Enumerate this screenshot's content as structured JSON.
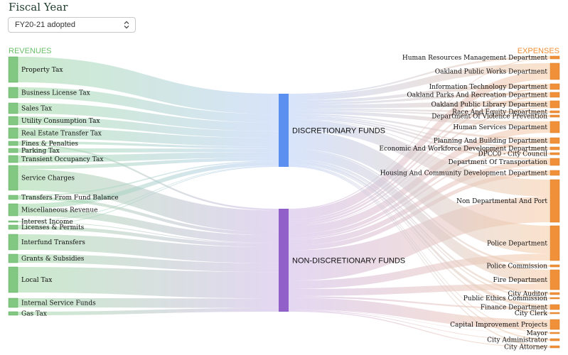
{
  "filter": {
    "title": "Fiscal Year",
    "selected": "FY20-21 adopted"
  },
  "headers": {
    "revenues": "REVENUES",
    "expenses": "EXPENSES"
  },
  "colors": {
    "revenue_node": "#82c882",
    "revenue_header": "#6abf6a",
    "discretionary": "#5b8ff0",
    "non_discretionary": "#9160c8",
    "expense_node": "#f0913a",
    "expense_header": "#f0913a"
  },
  "funds": [
    {
      "id": "disc",
      "label": "DISCRETIONARY FUNDS"
    },
    {
      "id": "nondisc",
      "label": "NON-DISCRETIONARY FUNDS"
    }
  ],
  "revenues": [
    {
      "label": "Property Tax"
    },
    {
      "label": "Business License Tax"
    },
    {
      "label": "Sales Tax"
    },
    {
      "label": "Utility Consumption Tax"
    },
    {
      "label": "Real Estate Transfer Tax"
    },
    {
      "label": "Fines & Penalties"
    },
    {
      "label": "Parking Tax"
    },
    {
      "label": "Transient Occupancy Tax"
    },
    {
      "label": "Service Charges"
    },
    {
      "label": "Transfers From Fund Balance"
    },
    {
      "label": "Miscellaneous Revenue"
    },
    {
      "label": "Interest Income"
    },
    {
      "label": "Licenses & Permits"
    },
    {
      "label": "Interfund Transfers"
    },
    {
      "label": "Grants & Subsidies"
    },
    {
      "label": "Local Tax"
    },
    {
      "label": "Internal Service Funds"
    },
    {
      "label": "Gas Tax"
    }
  ],
  "expenses": [
    {
      "label": "Human Resources Management Department"
    },
    {
      "label": "Oakland Public Works Department"
    },
    {
      "label": "Information Technology Department"
    },
    {
      "label": "Oakland Parks And Recreation Department"
    },
    {
      "label": "Oakland Public Library Department"
    },
    {
      "label": "Race And Equity Department"
    },
    {
      "label": "Department Of Violence Prevention"
    },
    {
      "label": "Human Services Department"
    },
    {
      "label": "Planning And Building Department"
    },
    {
      "label": "Economic And Workforce Development Department"
    },
    {
      "label": "DPCC0 - City Council"
    },
    {
      "label": "Department Of Transportation"
    },
    {
      "label": "Housing And Community Development Department"
    },
    {
      "label": "Non Departmental And Port"
    },
    {
      "label": "Police Department"
    },
    {
      "label": "Police Commission"
    },
    {
      "label": "Fire Department"
    },
    {
      "label": "City Auditor"
    },
    {
      "label": "Public Ethics Commission"
    },
    {
      "label": "Finance Department"
    },
    {
      "label": "City Clerk"
    },
    {
      "label": "Capital Improvement Projects"
    },
    {
      "label": "Mayor"
    },
    {
      "label": "City Administrator"
    },
    {
      "label": "City Attorney"
    }
  ]
}
